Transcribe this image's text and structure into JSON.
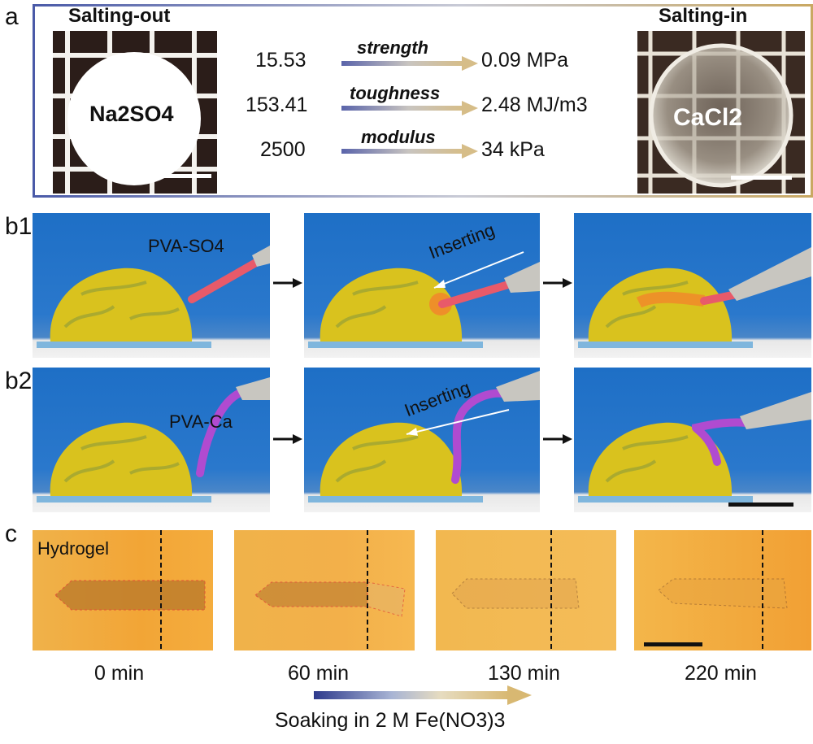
{
  "panel_a": {
    "label": "a",
    "left_title": "Salting-out",
    "left_salt": "Na2SO4",
    "right_title": "Salting-in",
    "right_salt": "CaCl2",
    "rows": [
      {
        "from": "15.53",
        "property": "strength",
        "to": "0.09 MPa"
      },
      {
        "from": "153.41",
        "property": "toughness",
        "to": "2.48 MJ/m3"
      },
      {
        "from": "2500",
        "property": "modulus",
        "to": "34 kPa"
      }
    ]
  },
  "panel_b1": {
    "label": "b1",
    "sample_label": "PVA-SO4",
    "action_label": "Inserting"
  },
  "panel_b2": {
    "label": "b2",
    "sample_label": "PVA-Ca",
    "action_label": "Inserting"
  },
  "panel_c": {
    "label": "c",
    "corner_label": "Hydrogel",
    "times": [
      "0 min",
      "60 min",
      "130 min",
      "220 min"
    ],
    "caption": "Soaking in 2 M Fe(NO3)3"
  },
  "colors": {
    "frame_start": "#4a5aa8",
    "frame_end": "#c9a862",
    "water_blue": "#1e6fc6",
    "brain_yellow": "#d9c21e",
    "pva_so4": "#e85a6a",
    "pva_ca": "#b04bd0",
    "orange_bg": "#f2a536"
  }
}
